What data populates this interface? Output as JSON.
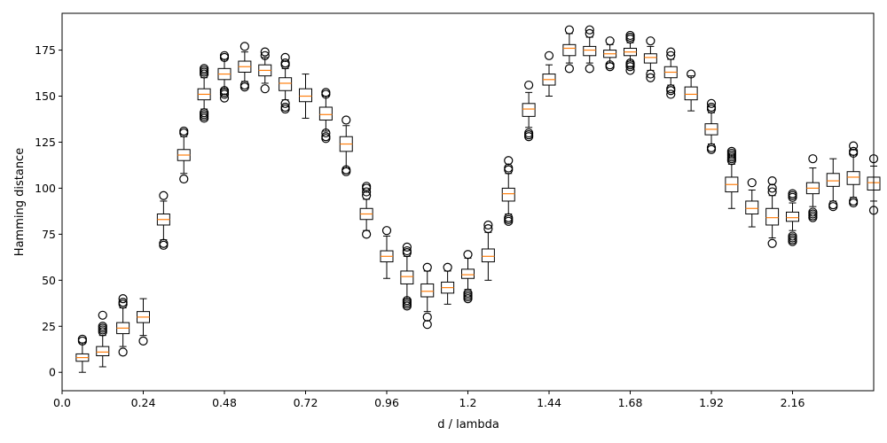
{
  "chart_data": {
    "type": "box",
    "xlabel": "d / lambda",
    "ylabel": "Hamming distance",
    "xlim": [
      0.0,
      2.4
    ],
    "ylim": [
      -10,
      195
    ],
    "grid": false,
    "colors": {
      "box_edge": "#000000",
      "median": "#ff7f0e",
      "outlier": "#000000",
      "background": "#ffffff"
    },
    "xticks": [
      {
        "value": 0.0,
        "label": "0.0"
      },
      {
        "value": 0.24,
        "label": "0.24"
      },
      {
        "value": 0.48,
        "label": "0.48"
      },
      {
        "value": 0.72,
        "label": "0.72"
      },
      {
        "value": 0.96,
        "label": "0.96"
      },
      {
        "value": 1.2,
        "label": "1.2"
      },
      {
        "value": 1.44,
        "label": "1.44"
      },
      {
        "value": 1.68,
        "label": "1.68"
      },
      {
        "value": 1.92,
        "label": "1.92"
      },
      {
        "value": 2.16,
        "label": "2.16"
      }
    ],
    "yticks": [
      {
        "value": 0,
        "label": "0"
      },
      {
        "value": 25,
        "label": "25"
      },
      {
        "value": 50,
        "label": "50"
      },
      {
        "value": 75,
        "label": "75"
      },
      {
        "value": 100,
        "label": "100"
      },
      {
        "value": 125,
        "label": "125"
      },
      {
        "value": 150,
        "label": "150"
      },
      {
        "value": 175,
        "label": "175"
      }
    ],
    "boxes": [
      {
        "x": 0.06,
        "q1": 6,
        "median": 8,
        "q3": 10,
        "whisker_low": 0,
        "whisker_high": 16,
        "outliers": [
          17,
          18
        ]
      },
      {
        "x": 0.12,
        "q1": 9,
        "median": 11,
        "q3": 14,
        "whisker_low": 3,
        "whisker_high": 20,
        "outliers": [
          22,
          23,
          24,
          25,
          31
        ]
      },
      {
        "x": 0.18,
        "q1": 21,
        "median": 24,
        "q3": 27,
        "whisker_low": 14,
        "whisker_high": 35,
        "outliers": [
          11,
          37,
          38,
          40
        ]
      },
      {
        "x": 0.24,
        "q1": 27,
        "median": 30,
        "q3": 33,
        "whisker_low": 20,
        "whisker_high": 40,
        "outliers": [
          17
        ]
      },
      {
        "x": 0.3,
        "q1": 80,
        "median": 83,
        "q3": 86,
        "whisker_low": 72,
        "whisker_high": 93,
        "outliers": [
          69,
          70,
          96
        ]
      },
      {
        "x": 0.36,
        "q1": 115,
        "median": 118,
        "q3": 121,
        "whisker_low": 108,
        "whisker_high": 128,
        "outliers": [
          105,
          130,
          131
        ]
      },
      {
        "x": 0.42,
        "q1": 148,
        "median": 151,
        "q3": 154,
        "whisker_low": 143,
        "whisker_high": 160,
        "outliers": [
          138,
          139,
          140,
          141,
          162,
          163,
          164,
          165
        ]
      },
      {
        "x": 0.48,
        "q1": 159,
        "median": 162,
        "q3": 165,
        "whisker_low": 154,
        "whisker_high": 170,
        "outliers": [
          149,
          151,
          152,
          153,
          171,
          172
        ]
      },
      {
        "x": 0.54,
        "q1": 163,
        "median": 166,
        "q3": 169,
        "whisker_low": 158,
        "whisker_high": 174,
        "outliers": [
          155,
          156,
          177
        ]
      },
      {
        "x": 0.6,
        "q1": 161,
        "median": 164,
        "q3": 167,
        "whisker_low": 157,
        "whisker_high": 171,
        "outliers": [
          154,
          172,
          174
        ]
      },
      {
        "x": 0.66,
        "q1": 153,
        "median": 157,
        "q3": 160,
        "whisker_low": 148,
        "whisker_high": 165,
        "outliers": [
          143,
          144,
          146,
          167,
          168,
          171
        ]
      },
      {
        "x": 0.72,
        "q1": 147,
        "median": 150,
        "q3": 154,
        "whisker_low": 138,
        "whisker_high": 162,
        "outliers": []
      },
      {
        "x": 0.78,
        "q1": 137,
        "median": 140,
        "q3": 144,
        "whisker_low": 131,
        "whisker_high": 150,
        "outliers": [
          127,
          128,
          130,
          151,
          152
        ]
      },
      {
        "x": 0.84,
        "q1": 120,
        "median": 124,
        "q3": 128,
        "whisker_low": 111,
        "whisker_high": 134,
        "outliers": [
          109,
          110,
          137
        ]
      },
      {
        "x": 0.9,
        "q1": 83,
        "median": 86,
        "q3": 89,
        "whisker_low": 77,
        "whisker_high": 94,
        "outliers": [
          75,
          96,
          98,
          100,
          101
        ]
      },
      {
        "x": 0.96,
        "q1": 60,
        "median": 63,
        "q3": 66,
        "whisker_low": 51,
        "whisker_high": 74,
        "outliers": [
          77
        ]
      },
      {
        "x": 1.02,
        "q1": 48,
        "median": 52,
        "q3": 55,
        "whisker_low": 40,
        "whisker_high": 63,
        "outliers": [
          36,
          37,
          38,
          39,
          65,
          66,
          68
        ]
      },
      {
        "x": 1.08,
        "q1": 41,
        "median": 44,
        "q3": 48,
        "whisker_low": 33,
        "whisker_high": 55,
        "outliers": [
          26,
          30,
          57
        ]
      },
      {
        "x": 1.14,
        "q1": 43,
        "median": 46,
        "q3": 49,
        "whisker_low": 37,
        "whisker_high": 55,
        "outliers": [
          57
        ]
      },
      {
        "x": 1.2,
        "q1": 51,
        "median": 53,
        "q3": 56,
        "whisker_low": 45,
        "whisker_high": 62,
        "outliers": [
          40,
          41,
          42,
          43,
          64
        ]
      },
      {
        "x": 1.26,
        "q1": 60,
        "median": 63,
        "q3": 67,
        "whisker_low": 50,
        "whisker_high": 76,
        "outliers": [
          78,
          80
        ]
      },
      {
        "x": 1.32,
        "q1": 93,
        "median": 97,
        "q3": 100,
        "whisker_low": 86,
        "whisker_high": 108,
        "outliers": [
          82,
          83,
          84,
          110,
          111,
          115
        ]
      },
      {
        "x": 1.38,
        "q1": 139,
        "median": 143,
        "q3": 146,
        "whisker_low": 133,
        "whisker_high": 152,
        "outliers": [
          128,
          129,
          130,
          156
        ]
      },
      {
        "x": 1.44,
        "q1": 156,
        "median": 159,
        "q3": 162,
        "whisker_low": 150,
        "whisker_high": 167,
        "outliers": [
          172
        ]
      },
      {
        "x": 1.5,
        "q1": 172,
        "median": 176,
        "q3": 178,
        "whisker_low": 168,
        "whisker_high": 184,
        "outliers": [
          165,
          186
        ]
      },
      {
        "x": 1.56,
        "q1": 172,
        "median": 175,
        "q3": 177,
        "whisker_low": 168,
        "whisker_high": 182,
        "outliers": [
          165,
          184,
          186
        ]
      },
      {
        "x": 1.62,
        "q1": 171,
        "median": 173,
        "q3": 175,
        "whisker_low": 168,
        "whisker_high": 178,
        "outliers": [
          166,
          167,
          180
        ]
      },
      {
        "x": 1.68,
        "q1": 172,
        "median": 174,
        "q3": 176,
        "whisker_low": 169,
        "whisker_high": 179,
        "outliers": [
          164,
          166,
          167,
          168,
          181,
          182,
          183
        ]
      },
      {
        "x": 1.74,
        "q1": 168,
        "median": 171,
        "q3": 173,
        "whisker_low": 164,
        "whisker_high": 177,
        "outliers": [
          160,
          162,
          180
        ]
      },
      {
        "x": 1.8,
        "q1": 160,
        "median": 163,
        "q3": 166,
        "whisker_low": 156,
        "whisker_high": 170,
        "outliers": [
          151,
          153,
          154,
          172,
          174
        ]
      },
      {
        "x": 1.86,
        "q1": 148,
        "median": 151,
        "q3": 155,
        "whisker_low": 142,
        "whisker_high": 161,
        "outliers": [
          162
        ]
      },
      {
        "x": 1.92,
        "q1": 129,
        "median": 132,
        "q3": 135,
        "whisker_low": 124,
        "whisker_high": 141,
        "outliers": [
          121,
          122,
          143,
          144,
          146
        ]
      },
      {
        "x": 1.98,
        "q1": 98,
        "median": 102,
        "q3": 106,
        "whisker_low": 89,
        "whisker_high": 113,
        "outliers": [
          115,
          116,
          117,
          118,
          119,
          120
        ]
      },
      {
        "x": 2.04,
        "q1": 86,
        "median": 89,
        "q3": 93,
        "whisker_low": 79,
        "whisker_high": 99,
        "outliers": [
          103
        ]
      },
      {
        "x": 2.1,
        "q1": 80,
        "median": 84,
        "q3": 89,
        "whisker_low": 73,
        "whisker_high": 96,
        "outliers": [
          70,
          98,
          100,
          104
        ]
      },
      {
        "x": 2.16,
        "q1": 82,
        "median": 84,
        "q3": 87,
        "whisker_low": 77,
        "whisker_high": 92,
        "outliers": [
          71,
          72,
          73,
          74,
          95,
          96,
          97
        ]
      },
      {
        "x": 2.22,
        "q1": 97,
        "median": 100,
        "q3": 103,
        "whisker_low": 90,
        "whisker_high": 111,
        "outliers": [
          84,
          85,
          86,
          87,
          116
        ]
      },
      {
        "x": 2.28,
        "q1": 101,
        "median": 104,
        "q3": 108,
        "whisker_low": 93,
        "whisker_high": 116,
        "outliers": [
          90,
          91
        ]
      },
      {
        "x": 2.34,
        "q1": 102,
        "median": 106,
        "q3": 109,
        "whisker_low": 95,
        "whisker_high": 118,
        "outliers": [
          92,
          93,
          119,
          120,
          123
        ]
      },
      {
        "x": 2.4,
        "q1": 99,
        "median": 103,
        "q3": 106,
        "whisker_low": 93,
        "whisker_high": 112,
        "outliers": [
          88,
          116
        ]
      }
    ]
  }
}
